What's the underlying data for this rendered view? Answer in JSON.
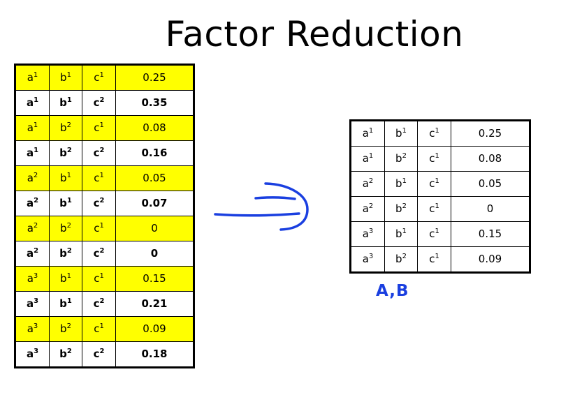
{
  "title": "Factor Reduction",
  "left_table": {
    "rows": [
      {
        "a": "a",
        "a_sup": "1",
        "b": "b",
        "b_sup": "1",
        "c": "c",
        "c_sup": "1",
        "value": "0.25",
        "highlight": true
      },
      {
        "a": "a",
        "a_sup": "1",
        "b": "b",
        "b_sup": "1",
        "c": "c",
        "c_sup": "2",
        "value": "0.35",
        "highlight": false
      },
      {
        "a": "a",
        "a_sup": "1",
        "b": "b",
        "b_sup": "2",
        "c": "c",
        "c_sup": "1",
        "value": "0.08",
        "highlight": true
      },
      {
        "a": "a",
        "a_sup": "1",
        "b": "b",
        "b_sup": "2",
        "c": "c",
        "c_sup": "2",
        "value": "0.16",
        "highlight": false
      },
      {
        "a": "a",
        "a_sup": "2",
        "b": "b",
        "b_sup": "1",
        "c": "c",
        "c_sup": "1",
        "value": "0.05",
        "highlight": true
      },
      {
        "a": "a",
        "a_sup": "2",
        "b": "b",
        "b_sup": "1",
        "c": "c",
        "c_sup": "2",
        "value": "0.07",
        "highlight": false
      },
      {
        "a": "a",
        "a_sup": "2",
        "b": "b",
        "b_sup": "2",
        "c": "c",
        "c_sup": "1",
        "value": "0",
        "highlight": true
      },
      {
        "a": "a",
        "a_sup": "2",
        "b": "b",
        "b_sup": "2",
        "c": "c",
        "c_sup": "2",
        "value": "0",
        "highlight": false
      },
      {
        "a": "a",
        "a_sup": "3",
        "b": "b",
        "b_sup": "1",
        "c": "c",
        "c_sup": "1",
        "value": "0.15",
        "highlight": true
      },
      {
        "a": "a",
        "a_sup": "3",
        "b": "b",
        "b_sup": "1",
        "c": "c",
        "c_sup": "2",
        "value": "0.21",
        "highlight": false
      },
      {
        "a": "a",
        "a_sup": "3",
        "b": "b",
        "b_sup": "2",
        "c": "c",
        "c_sup": "1",
        "value": "0.09",
        "highlight": true
      },
      {
        "a": "a",
        "a_sup": "3",
        "b": "b",
        "b_sup": "2",
        "c": "c",
        "c_sup": "2",
        "value": "0.18",
        "highlight": false
      }
    ]
  },
  "right_table": {
    "rows": [
      {
        "a": "a",
        "a_sup": "1",
        "b": "b",
        "b_sup": "1",
        "c": "c",
        "c_sup": "1",
        "value": "0.25"
      },
      {
        "a": "a",
        "a_sup": "1",
        "b": "b",
        "b_sup": "2",
        "c": "c",
        "c_sup": "1",
        "value": "0.08"
      },
      {
        "a": "a",
        "a_sup": "2",
        "b": "b",
        "b_sup": "1",
        "c": "c",
        "c_sup": "1",
        "value": "0.05"
      },
      {
        "a": "a",
        "a_sup": "2",
        "b": "b",
        "b_sup": "2",
        "c": "c",
        "c_sup": "1",
        "value": "0"
      },
      {
        "a": "a",
        "a_sup": "3",
        "b": "b",
        "b_sup": "1",
        "c": "c",
        "c_sup": "1",
        "value": "0.15"
      },
      {
        "a": "a",
        "a_sup": "3",
        "b": "b",
        "b_sup": "2",
        "c": "c",
        "c_sup": "1",
        "value": "0.09"
      }
    ]
  },
  "arrow_icon": "hand-drawn-arrow-icon",
  "handwritten_label": "A,B",
  "colors": {
    "highlight": "#ffff00",
    "ink_blue": "#1a3fe0"
  }
}
